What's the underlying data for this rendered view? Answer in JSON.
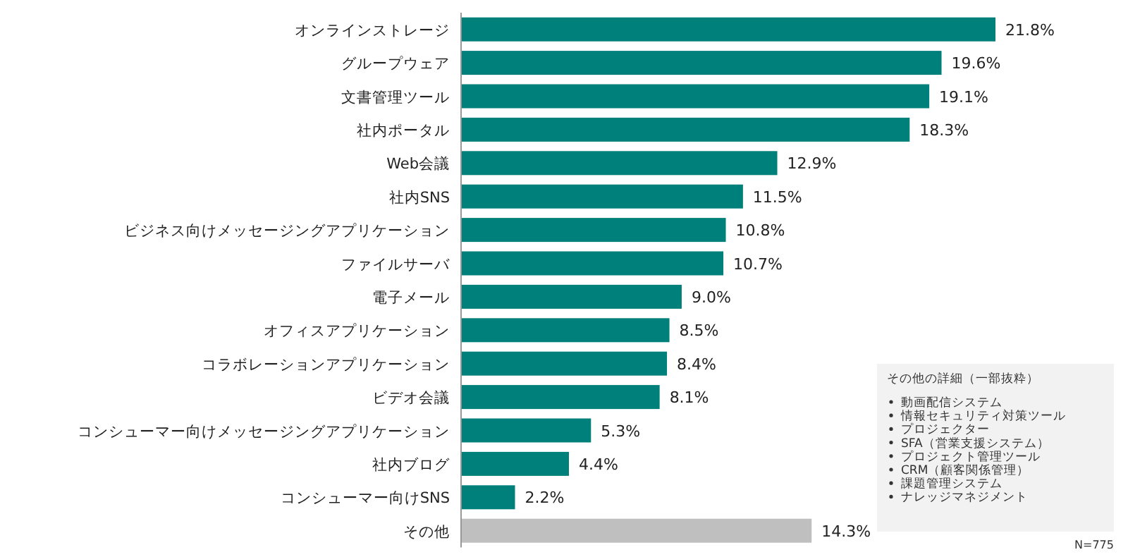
{
  "chart_data": {
    "type": "bar",
    "orientation": "horizontal",
    "data_labels": true,
    "categories": [
      "オンラインストレージ",
      "グループウェア",
      "文書管理ツール",
      "社内ポータル",
      "Web会議",
      "社内SNS",
      "ビジネス向けメッセージングアプリケーション",
      "ファイルサーバ",
      "電子メール",
      "オフィスアプリケーション",
      "コラボレーションアプリケーション",
      "ビデオ会議",
      "コンシューマー向けメッセージングアプリケーション",
      "社内ブログ",
      "コンシューマー向けSNS",
      "その他"
    ],
    "values": [
      21.8,
      19.6,
      19.1,
      18.3,
      12.9,
      11.5,
      10.8,
      10.7,
      9.0,
      8.5,
      8.4,
      8.1,
      5.3,
      4.4,
      2.2,
      14.3
    ],
    "value_labels": [
      "21.8%",
      "19.6%",
      "19.1%",
      "18.3%",
      "12.9%",
      "11.5%",
      "10.8%",
      "10.7%",
      "9.0%",
      "8.5%",
      "8.4%",
      "8.1%",
      "5.3%",
      "4.4%",
      "2.2%",
      "14.3%"
    ],
    "colors": [
      "#00807a",
      "#00807a",
      "#00807a",
      "#00807a",
      "#00807a",
      "#00807a",
      "#00807a",
      "#00807a",
      "#00807a",
      "#00807a",
      "#00807a",
      "#00807a",
      "#00807a",
      "#00807a",
      "#00807a",
      "#bfbfbf"
    ],
    "annotations": [
      "その他の詳細（一部抜粋）",
      "動画配信システム",
      "情報セキュリティ対策ツール",
      "プロジェクター",
      "SFA（営業支援システム）",
      "プロジェクト管理ツール",
      "CRM（顧客関係管理）",
      "課題管理システム",
      "ナレッジマネジメント",
      "N=775"
    ]
  }
}
